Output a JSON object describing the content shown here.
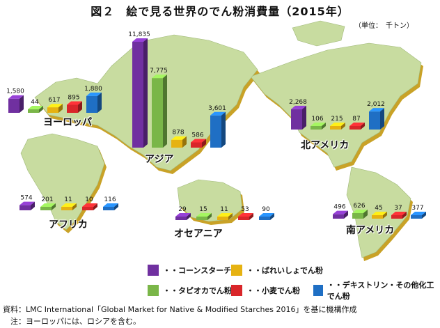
{
  "title": "図２　絵で見る世界のでん粉消費量（2015年）",
  "unit": "（単位：　千トン）",
  "colors": {
    "corn": "#7030a0",
    "tapioca": "#7ab648",
    "potato": "#e6b212",
    "wheat": "#d9262a",
    "other": "#1f6fc4",
    "land": "#c8dca0",
    "land_shadow": "#c9a227"
  },
  "legend": [
    {
      "key": "corn",
      "label": "・・コーンスターチ"
    },
    {
      "key": "potato",
      "label": "・・ばれいしょでん粉"
    },
    {
      "key": "tapioca",
      "label": "・・タピオカでん粉"
    },
    {
      "key": "wheat",
      "label": "・・小麦でん粉"
    },
    {
      "key": "other",
      "label": "・・デキストリン・その他化工でん粉"
    }
  ],
  "chart_data": {
    "type": "bar",
    "title": "図２　絵で見る世界のでん粉消費量（2015年）",
    "unit": "千トン",
    "series_order": [
      "corn",
      "tapioca",
      "potato",
      "wheat",
      "other"
    ],
    "series_names": [
      "・・コーンスターチ",
      "・・タピオカでん粉",
      "・・ばれいしょでん粉",
      "・・小麦でん粉",
      "・・デキストリン・その他化工でん粉"
    ],
    "regions": [
      {
        "name": "ヨーロッパ",
        "values": [
          1580,
          44,
          617,
          895,
          1880
        ],
        "labels": [
          "1,580",
          "44",
          "617",
          "895",
          "1,880"
        ]
      },
      {
        "name": "アジア",
        "values": [
          11835,
          7775,
          878,
          586,
          3601
        ],
        "labels": [
          "11,835",
          "7,775",
          "878",
          "586",
          "3,601"
        ]
      },
      {
        "name": "北アメリカ",
        "values": [
          2268,
          106,
          215,
          87,
          2012
        ],
        "labels": [
          "2,268",
          "106",
          "215",
          "87",
          "2,012"
        ]
      },
      {
        "name": "アフリカ",
        "values": [
          574,
          201,
          11,
          10,
          116
        ],
        "labels": [
          "574",
          "201",
          "11",
          "10",
          "116"
        ]
      },
      {
        "name": "オセアニア",
        "values": [
          29,
          15,
          11,
          53,
          90
        ],
        "labels": [
          "29",
          "15",
          "11",
          "53",
          "90"
        ]
      },
      {
        "name": "南アメリカ",
        "values": [
          496,
          626,
          45,
          37,
          377
        ],
        "labels": [
          "496",
          "626",
          "45",
          "37",
          "377"
        ]
      }
    ]
  },
  "footnotes": {
    "source": "資料：LMC International「Global Market for Native & Modified Starches 2016」を基に機構作成",
    "note": "　注：ヨーロッパには、ロシアを含む。"
  }
}
